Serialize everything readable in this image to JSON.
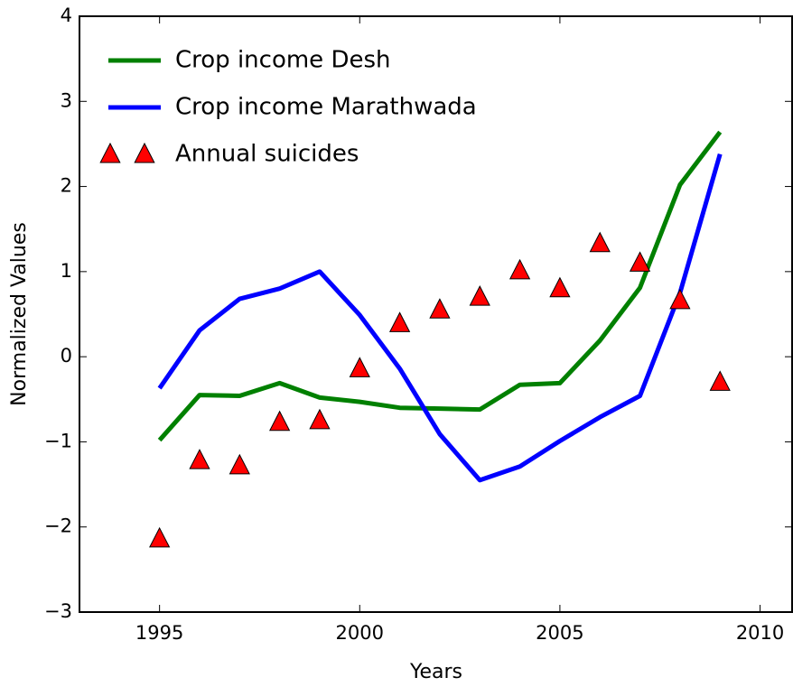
{
  "chart_data": {
    "type": "line",
    "xlabel": "Years",
    "ylabel": "Normalized Values",
    "x": [
      1995,
      1996,
      1997,
      1998,
      1999,
      2000,
      2001,
      2002,
      2003,
      2004,
      2005,
      2006,
      2007,
      2008,
      2009
    ],
    "series": [
      {
        "name": "Crop income Desh",
        "color": "#008000",
        "line": true,
        "marker": null,
        "values": [
          -0.98,
          -0.45,
          -0.46,
          -0.31,
          -0.48,
          -0.53,
          -0.6,
          -0.61,
          -0.62,
          -0.33,
          -0.31,
          0.19,
          0.81,
          2.02,
          2.64
        ]
      },
      {
        "name": "Crop income Marathwada",
        "color": "#0000ff",
        "line": true,
        "marker": null,
        "values": [
          -0.37,
          0.31,
          0.68,
          0.8,
          1.0,
          0.49,
          -0.14,
          -0.91,
          -1.45,
          -1.29,
          -0.99,
          -0.71,
          -0.46,
          0.75,
          2.38
        ]
      },
      {
        "name": "Annual suicides",
        "color": "#ff0000",
        "line": false,
        "marker": "triangle",
        "values": [
          -2.14,
          -1.22,
          -1.28,
          -0.77,
          -0.75,
          -0.14,
          0.39,
          0.55,
          0.7,
          1.01,
          0.8,
          1.33,
          1.1,
          0.66,
          -0.3
        ]
      }
    ],
    "xlim": [
      1993,
      2010.8
    ],
    "xticks": [
      1995,
      2000,
      2005,
      2010
    ],
    "ylim": [
      -3,
      4
    ],
    "yticks": [
      {
        "value": -3,
        "label": "−3"
      },
      {
        "value": -2,
        "label": "−2"
      },
      {
        "value": -1,
        "label": "−1"
      },
      0,
      1,
      2,
      3,
      4
    ],
    "grid": false,
    "legend": "upper left"
  }
}
